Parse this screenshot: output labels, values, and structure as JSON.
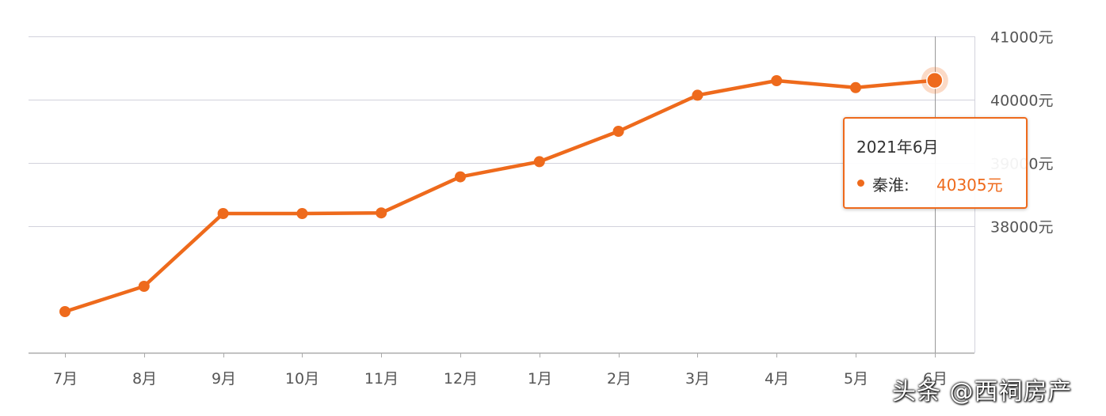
{
  "chart_data": {
    "type": "line",
    "categories": [
      "7月",
      "8月",
      "9月",
      "10月",
      "11月",
      "12月",
      "1月",
      "2月",
      "3月",
      "4月",
      "5月",
      "6月"
    ],
    "series": [
      {
        "name": "秦淮",
        "values": [
          36650,
          37050,
          38200,
          38200,
          38210,
          38780,
          39020,
          39500,
          40070,
          40300,
          40190,
          40305
        ]
      }
    ],
    "y_ticks": [
      38000,
      39000,
      40000,
      41000
    ],
    "y_tick_labels": [
      "38000元",
      "39000元",
      "40000元",
      "41000元"
    ],
    "ylim": [
      36000,
      41000
    ],
    "y_axis_position": "right",
    "grid": true,
    "colors": {
      "line": "#ee6a1c",
      "grid": "#d2d2dc",
      "axis": "#aaaaaa",
      "tick_text": "#555555"
    },
    "highlight_index": 11
  },
  "tooltip": {
    "title": "2021年6月",
    "series_label": "秦淮:",
    "value": "40305元"
  },
  "watermark": "头条 @西祠房产"
}
